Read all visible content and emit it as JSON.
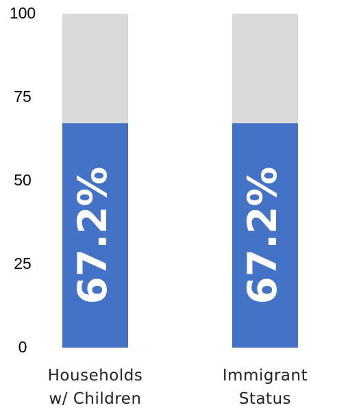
{
  "chart_data": {
    "type": "stacked_bar",
    "categories": [
      "Households w/ Children",
      "Immigrant Status"
    ],
    "series": [
      {
        "color": "#4472c4",
        "values": [
          67.2,
          67.2
        ],
        "value_labels": [
          "67.2%",
          "67.2%"
        ]
      },
      {
        "color": "#d9d9d9",
        "values": [
          32.8,
          32.8
        ]
      }
    ],
    "ylim": [
      0,
      100
    ],
    "yticks": [
      0,
      25,
      50,
      75,
      100
    ],
    "grid": false
  }
}
